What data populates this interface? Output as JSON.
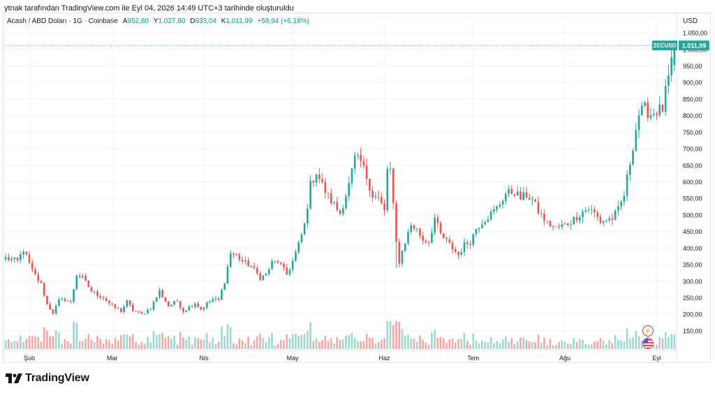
{
  "caption": "ytnak tarafından TradingView.com ile Eyl 04, 2026 14:49 UTC+3 tarihinde oluşturuldu",
  "legend": {
    "title": "Acash / ABD Doları · 1G · Coinbase",
    "open_label": "A",
    "open": "952,80",
    "high_label": "Y",
    "high": "1.027,80",
    "low_label": "D",
    "low": "933,04",
    "close_label": "K",
    "close": "1.011,99",
    "change": "+58,94 (+6,18%)"
  },
  "currency": "USD",
  "last_price": {
    "symbol": "ZECUSD",
    "value": "1.011,99"
  },
  "logo_text": "TradingView",
  "colors": {
    "up": "#26a69a",
    "down": "#ef5350",
    "vol_up": "#9fd8cf",
    "vol_down": "#f5a7a6",
    "grid": "#f0f3fa",
    "accent": "#089981"
  },
  "chart_data": {
    "type": "candlestick",
    "symbol": "ZECUSD",
    "title": "Acash / ABD Doları · 1G · Coinbase",
    "currency": "USD",
    "grid": true,
    "ylim": [
      95,
      1065
    ],
    "y_ticks": [
      150,
      200,
      250,
      300,
      350,
      400,
      450,
      500,
      550,
      600,
      650,
      700,
      750,
      800,
      850,
      900,
      950,
      1000,
      1050
    ],
    "y_tick_labels": [
      "150,00",
      "200,00",
      "250,00",
      "300,00",
      "350,00",
      "400,00",
      "450,00",
      "500,00",
      "550,00",
      "600,00",
      "650,00",
      "700,00",
      "750,00",
      "800,00",
      "850,00",
      "900,00",
      "950,00",
      "1.000,00",
      "1.050,00"
    ],
    "x_ticks": [
      {
        "label": "Şub",
        "index": 8
      },
      {
        "label": "Mar",
        "index": 36
      },
      {
        "label": "Nis",
        "index": 67
      },
      {
        "label": "May",
        "index": 97
      },
      {
        "label": "Haz",
        "index": 128
      },
      {
        "label": "Tem",
        "index": 158
      },
      {
        "label": "Ağu",
        "index": 189
      },
      {
        "label": "Eyl",
        "index": 220
      }
    ],
    "anchors": [
      [
        0,
        370
      ],
      [
        4,
        360
      ],
      [
        6,
        395
      ],
      [
        9,
        330
      ],
      [
        12,
        290
      ],
      [
        14,
        230
      ],
      [
        16,
        205
      ],
      [
        18,
        240
      ],
      [
        20,
        245
      ],
      [
        22,
        235
      ],
      [
        24,
        320
      ],
      [
        26,
        310
      ],
      [
        29,
        270
      ],
      [
        33,
        250
      ],
      [
        36,
        225
      ],
      [
        39,
        210
      ],
      [
        41,
        238
      ],
      [
        43,
        212
      ],
      [
        46,
        200
      ],
      [
        49,
        218
      ],
      [
        52,
        270
      ],
      [
        55,
        225
      ],
      [
        58,
        240
      ],
      [
        60,
        210
      ],
      [
        62,
        222
      ],
      [
        64,
        235
      ],
      [
        66,
        215
      ],
      [
        68,
        232
      ],
      [
        70,
        245
      ],
      [
        72,
        242
      ],
      [
        74,
        300
      ],
      [
        76,
        385
      ],
      [
        78,
        378
      ],
      [
        80,
        360
      ],
      [
        83,
        345
      ],
      [
        86,
        310
      ],
      [
        88,
        320
      ],
      [
        90,
        355
      ],
      [
        92,
        360
      ],
      [
        95,
        320
      ],
      [
        97,
        360
      ],
      [
        99,
        410
      ],
      [
        101,
        470
      ],
      [
        103,
        590
      ],
      [
        105,
        630
      ],
      [
        107,
        590
      ],
      [
        109,
        555
      ],
      [
        111,
        530
      ],
      [
        113,
        505
      ],
      [
        116,
        590
      ],
      [
        118,
        670
      ],
      [
        120,
        660
      ],
      [
        122,
        615
      ],
      [
        124,
        560
      ],
      [
        126,
        550
      ],
      [
        128,
        510
      ],
      [
        129,
        640
      ],
      [
        130,
        635
      ],
      [
        132,
        415
      ],
      [
        133,
        360
      ],
      [
        135,
        420
      ],
      [
        137,
        470
      ],
      [
        139,
        455
      ],
      [
        141,
        425
      ],
      [
        143,
        420
      ],
      [
        145,
        490
      ],
      [
        147,
        440
      ],
      [
        149,
        420
      ],
      [
        151,
        400
      ],
      [
        153,
        380
      ],
      [
        155,
        410
      ],
      [
        157,
        420
      ],
      [
        159,
        460
      ],
      [
        161,
        480
      ],
      [
        163,
        495
      ],
      [
        166,
        520
      ],
      [
        169,
        565
      ],
      [
        172,
        570
      ],
      [
        174,
        550
      ],
      [
        176,
        560
      ],
      [
        178,
        545
      ],
      [
        180,
        510
      ],
      [
        183,
        475
      ],
      [
        186,
        460
      ],
      [
        189,
        470
      ],
      [
        191,
        480
      ],
      [
        193,
        495
      ],
      [
        195,
        510
      ],
      [
        197,
        520
      ],
      [
        199,
        505
      ],
      [
        201,
        480
      ],
      [
        203,
        485
      ],
      [
        205,
        490
      ],
      [
        207,
        515
      ],
      [
        209,
        560
      ],
      [
        211,
        660
      ],
      [
        213,
        760
      ],
      [
        214,
        805
      ],
      [
        216,
        820
      ],
      [
        218,
        805
      ],
      [
        220,
        815
      ],
      [
        222,
        820
      ],
      [
        223,
        870
      ],
      [
        225,
        953
      ],
      [
        226,
        1012
      ]
    ],
    "n_candles": 227,
    "last": {
      "open": 952.8,
      "high": 1027.8,
      "low": 933.04,
      "close": 1011.99,
      "change": 58.94,
      "change_pct": 6.18
    }
  }
}
